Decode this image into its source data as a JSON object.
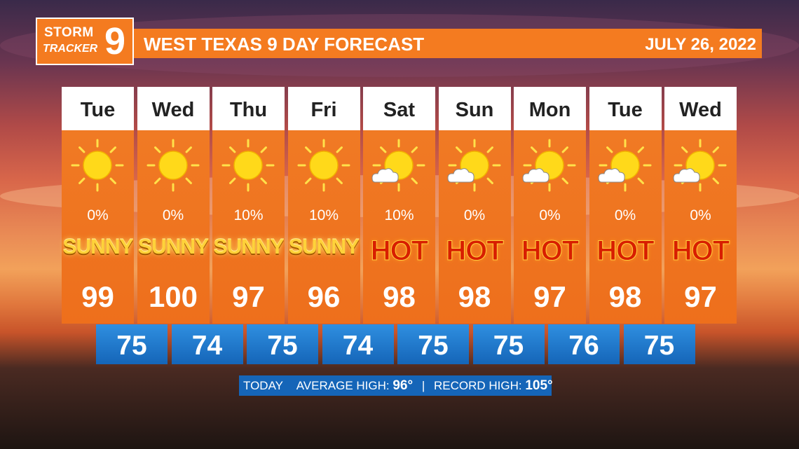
{
  "header": {
    "logo": [
      "STORM",
      "TRACKER",
      "9"
    ],
    "title": "WEST TEXAS 9 DAY FORECAST",
    "date": "JULY 26, 2022"
  },
  "days": [
    {
      "day": "Tue",
      "precip": "0%",
      "condition": "SUNNY",
      "high": 99
    },
    {
      "day": "Wed",
      "precip": "0%",
      "condition": "SUNNY",
      "high": 100
    },
    {
      "day": "Thu",
      "precip": "10%",
      "condition": "SUNNY",
      "high": 97
    },
    {
      "day": "Fri",
      "precip": "10%",
      "condition": "SUNNY",
      "high": 96
    },
    {
      "day": "Sat",
      "precip": "10%",
      "condition": "HOT",
      "high": 98
    },
    {
      "day": "Sun",
      "precip": "0%",
      "condition": "HOT",
      "high": 98
    },
    {
      "day": "Mon",
      "precip": "0%",
      "condition": "HOT",
      "high": 97
    },
    {
      "day": "Tue",
      "precip": "0%",
      "condition": "HOT",
      "high": 98
    },
    {
      "day": "Wed",
      "precip": "0%",
      "condition": "HOT",
      "high": 97
    }
  ],
  "lows": [
    75,
    74,
    75,
    74,
    75,
    75,
    76,
    75
  ],
  "footer": {
    "label": "TODAY",
    "average_label": "AVERAGE HIGH:",
    "average": "96°",
    "separator": "|",
    "record_label": "RECORD HIGH:",
    "record": "105°"
  }
}
